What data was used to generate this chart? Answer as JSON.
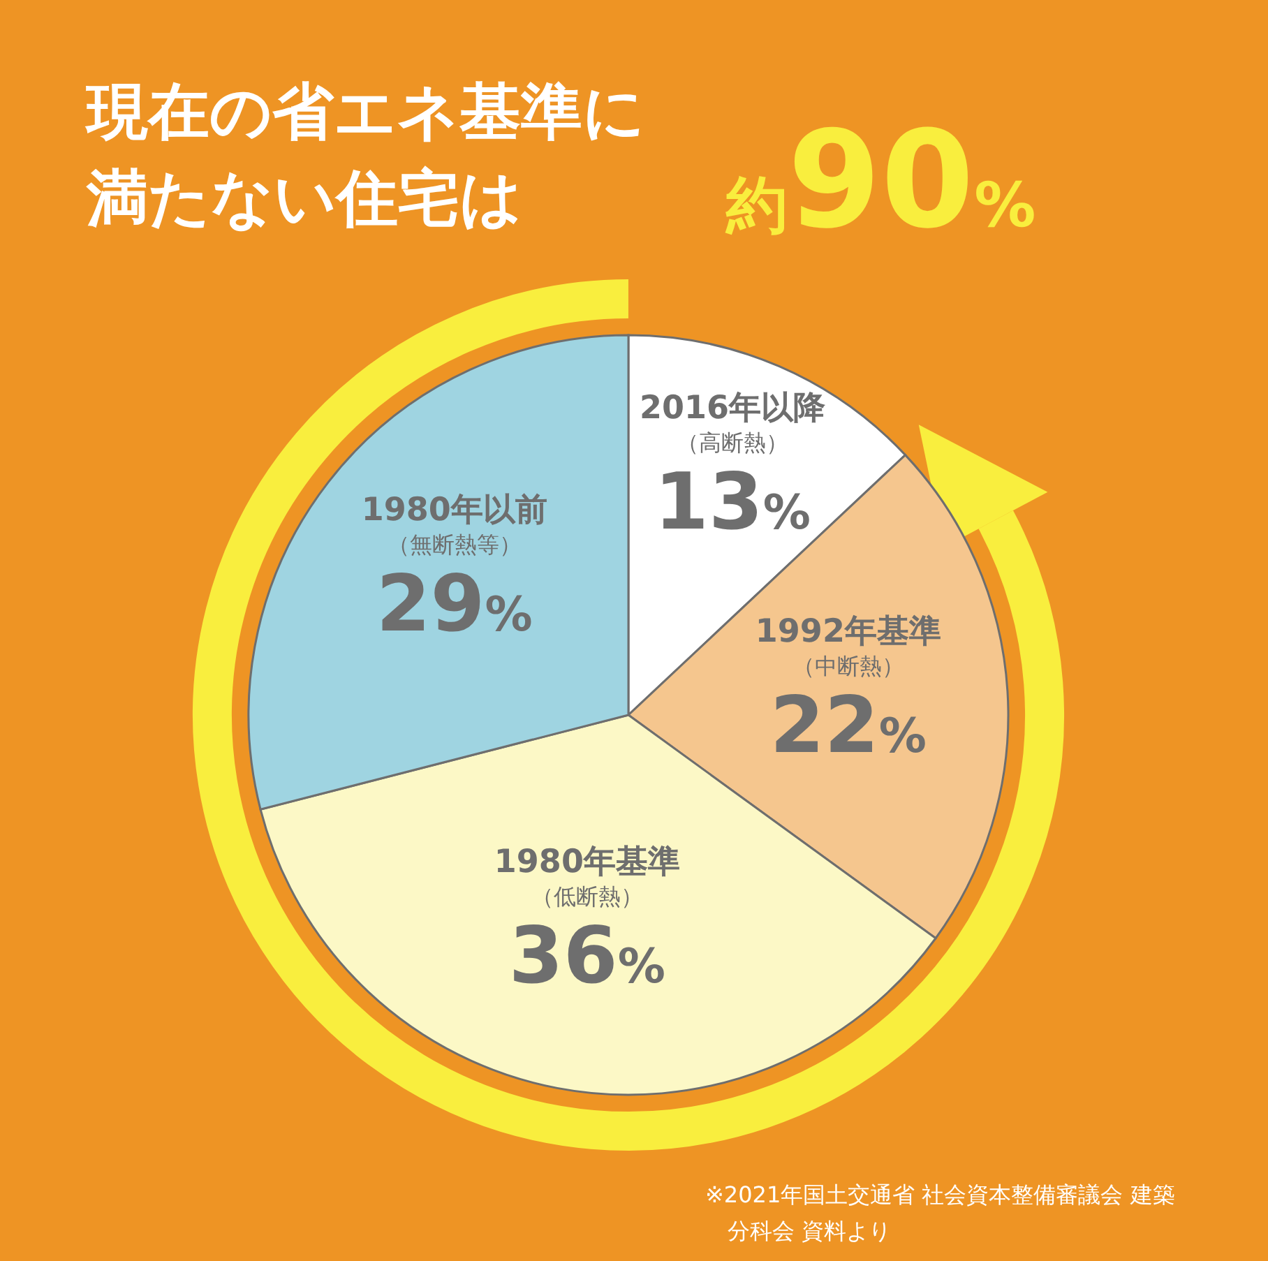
{
  "chart_data": {
    "type": "pie",
    "title": "現在の省エネ基準に満たない住宅は",
    "subtitle": "約90%",
    "categories": [
      "2016年以降（高断熱）",
      "1992年基準（中断熱）",
      "1980年基準（低断熱）",
      "1980年以前（無断熱等）"
    ],
    "values": [
      13,
      22,
      36,
      29
    ],
    "colors": [
      "#ffffff",
      "#f5c68e",
      "#fcf8c6",
      "#9fd4e1"
    ],
    "value_labels": [
      "13%",
      "22%",
      "36%",
      "29%"
    ],
    "legend": false,
    "annotations": [
      "※2021年国土交通省 社会資本整備審議会 建築分科会 資料より"
    ]
  }
}
